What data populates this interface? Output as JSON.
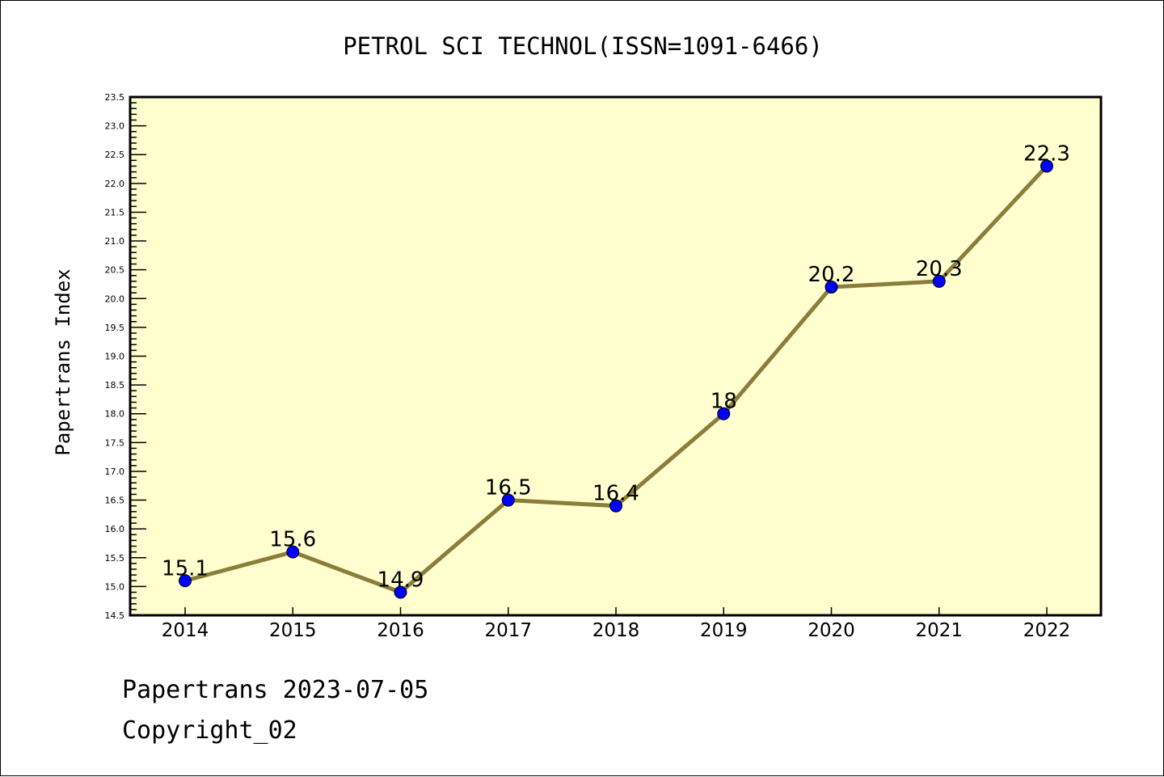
{
  "chart_data": {
    "type": "line",
    "title": "PETROL SCI TECHNOL(ISSN=1091-6466)",
    "xlabel": "",
    "ylabel": "Papertrans Index",
    "categories": [
      "2014",
      "2015",
      "2016",
      "2017",
      "2018",
      "2019",
      "2020",
      "2021",
      "2022"
    ],
    "values": [
      15.1,
      15.6,
      14.9,
      16.5,
      16.4,
      18,
      20.2,
      20.3,
      22.3
    ],
    "data_labels": [
      "15.1",
      "15.6",
      "14.9",
      "16.5",
      "16.4",
      "18",
      "20.2",
      "20.3",
      "22.3"
    ],
    "ylim": [
      14.5,
      23.5
    ],
    "yticks": [
      "14.5",
      "15.0",
      "15.5",
      "16.0",
      "16.5",
      "17.0",
      "17.5",
      "18.0",
      "18.5",
      "19.0",
      "19.5",
      "20.0",
      "20.5",
      "21.0",
      "21.5",
      "22.0",
      "22.5",
      "23.0",
      "23.5"
    ],
    "grid": false,
    "colors": {
      "line": "#8b7d3a",
      "marker": "#0000ff",
      "plot_bg": "#ffffd0"
    }
  },
  "footer": {
    "line1": "Papertrans 2023-07-05",
    "line2": "Copyright_02"
  }
}
